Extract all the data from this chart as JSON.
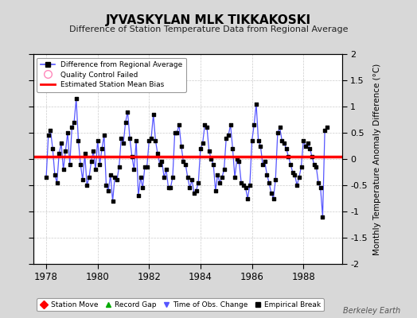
{
  "title": "JYVASKYLAN MLK TIKKAKOSKI",
  "subtitle": "Difference of Station Temperature Data from Regional Average",
  "ylabel": "Monthly Temperature Anomaly Difference (°C)",
  "xlabel_credit": "Berkeley Earth",
  "xlim": [
    1977.5,
    1989.5
  ],
  "ylim": [
    -2,
    2
  ],
  "yticks": [
    -2,
    -1.5,
    -1,
    -0.5,
    0,
    0.5,
    1,
    1.5,
    2
  ],
  "xticks": [
    1978,
    1980,
    1982,
    1984,
    1986,
    1988
  ],
  "mean_bias": 0.05,
  "line_color": "#5555ff",
  "marker_color": "#000000",
  "bias_color": "#ff0000",
  "bg_color": "#d8d8d8",
  "plot_bg_color": "#ffffff",
  "values": [
    -0.35,
    0.45,
    0.55,
    0.2,
    -0.3,
    -0.45,
    0.1,
    0.3,
    -0.2,
    0.15,
    0.5,
    -0.1,
    0.6,
    0.7,
    1.15,
    0.35,
    -0.1,
    -0.4,
    0.1,
    -0.5,
    -0.35,
    -0.05,
    0.15,
    -0.2,
    0.35,
    -0.1,
    0.2,
    0.45,
    -0.5,
    -0.6,
    -0.3,
    -0.8,
    -0.35,
    -0.4,
    -0.15,
    0.4,
    0.3,
    0.7,
    0.9,
    0.4,
    0.05,
    -0.2,
    0.35,
    -0.7,
    -0.35,
    -0.55,
    -0.15,
    -0.15,
    0.35,
    0.4,
    0.85,
    0.35,
    0.1,
    -0.1,
    -0.05,
    -0.35,
    -0.2,
    -0.55,
    -0.55,
    -0.35,
    0.5,
    0.5,
    0.65,
    0.25,
    -0.05,
    -0.1,
    -0.35,
    -0.55,
    -0.4,
    -0.65,
    -0.6,
    -0.45,
    0.2,
    0.3,
    0.65,
    0.6,
    0.15,
    0.0,
    -0.1,
    -0.6,
    -0.3,
    -0.45,
    -0.35,
    -0.2,
    0.4,
    0.45,
    0.65,
    0.2,
    -0.35,
    0.0,
    -0.05,
    -0.45,
    -0.5,
    -0.55,
    -0.75,
    -0.5,
    0.35,
    0.65,
    1.05,
    0.35,
    0.25,
    -0.1,
    -0.05,
    -0.3,
    -0.45,
    -0.65,
    -0.75,
    -0.4,
    0.5,
    0.6,
    0.35,
    0.3,
    0.2,
    0.05,
    -0.1,
    -0.25,
    -0.3,
    -0.5,
    -0.35,
    -0.15,
    0.35,
    0.25,
    0.3,
    0.2,
    0.05,
    -0.1,
    -0.15,
    -0.45,
    -0.55,
    -1.1,
    0.55,
    0.6
  ]
}
